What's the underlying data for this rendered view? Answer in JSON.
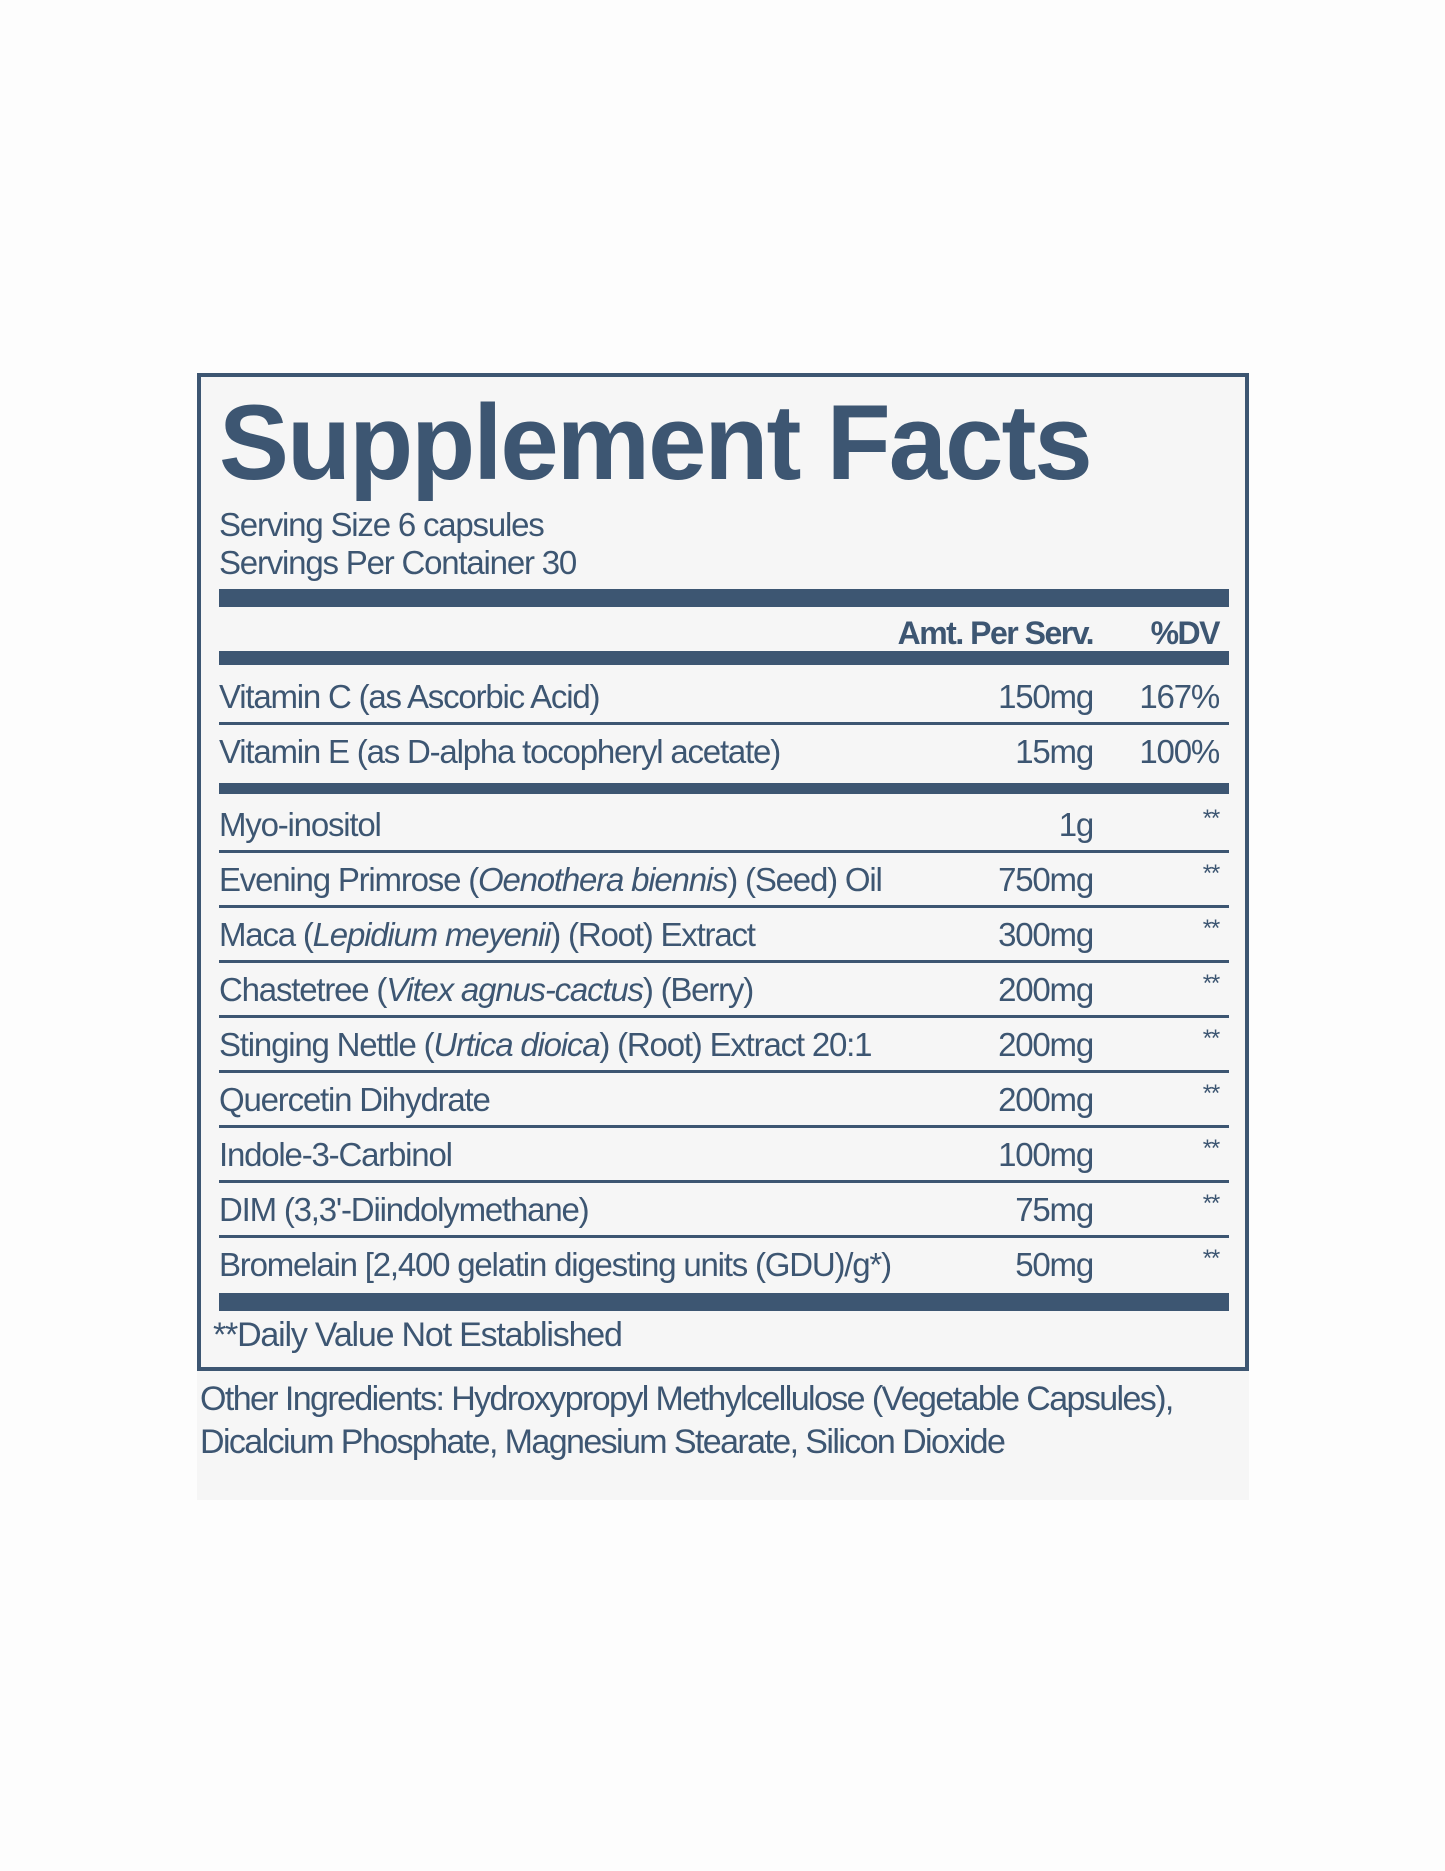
{
  "title": "Supplement Facts",
  "serving_size": "Serving Size 6 capsules",
  "servings_per_container": "Servings Per Container 30",
  "header": {
    "amount": "Amt. Per Serv.",
    "dv": "%DV"
  },
  "vitamins": [
    {
      "name": [
        {
          "text": "Vitamin C (as Ascorbic Acid)"
        }
      ],
      "amount": "150mg",
      "dv": "167%"
    },
    {
      "name": [
        {
          "text": "Vitamin E (as D-alpha tocopheryl acetate)"
        }
      ],
      "amount": "15mg",
      "dv": "100%"
    }
  ],
  "ingredients": [
    {
      "name": [
        {
          "text": "Myo-inositol"
        }
      ],
      "amount": "1g",
      "dv": "**"
    },
    {
      "name": [
        {
          "text": "Evening Primrose ("
        },
        {
          "text": "Oenothera biennis",
          "italic": true
        },
        {
          "text": ") (Seed) Oil"
        }
      ],
      "amount": "750mg",
      "dv": "**"
    },
    {
      "name": [
        {
          "text": "Maca ("
        },
        {
          "text": "Lepidium meyenii",
          "italic": true
        },
        {
          "text": ") (Root) Extract"
        }
      ],
      "amount": "300mg",
      "dv": "**"
    },
    {
      "name": [
        {
          "text": "Chastetree ("
        },
        {
          "text": "Vitex agnus-cactus",
          "italic": true
        },
        {
          "text": ") (Berry)"
        }
      ],
      "amount": "200mg",
      "dv": "**"
    },
    {
      "name": [
        {
          "text": "Stinging Nettle ("
        },
        {
          "text": "Urtica dioica",
          "italic": true
        },
        {
          "text": ") (Root) Extract 20:1"
        }
      ],
      "amount": "200mg",
      "dv": "**"
    },
    {
      "name": [
        {
          "text": "Quercetin Dihydrate"
        }
      ],
      "amount": "200mg",
      "dv": "**"
    },
    {
      "name": [
        {
          "text": "Indole-3-Carbinol"
        }
      ],
      "amount": "100mg",
      "dv": "**"
    },
    {
      "name": [
        {
          "text": "DIM (3,3'-Diindolymethane)"
        }
      ],
      "amount": "75mg",
      "dv": "**"
    },
    {
      "name": [
        {
          "text": "Bromelain [2,400 gelatin digesting units (GDU)/g*)"
        }
      ],
      "amount": "50mg",
      "dv": "**"
    }
  ],
  "footnote": "**Daily Value Not Established",
  "other_ingredients": [
    "Other Ingredients: Hydroxypropyl Methylcellulose (Vegetable Capsules),",
    "Dicalcium Phosphate, Magnesium Stearate, Silicon Dioxide"
  ],
  "colors": {
    "ink": "#3d5672",
    "panel": "#f6f6f6"
  }
}
